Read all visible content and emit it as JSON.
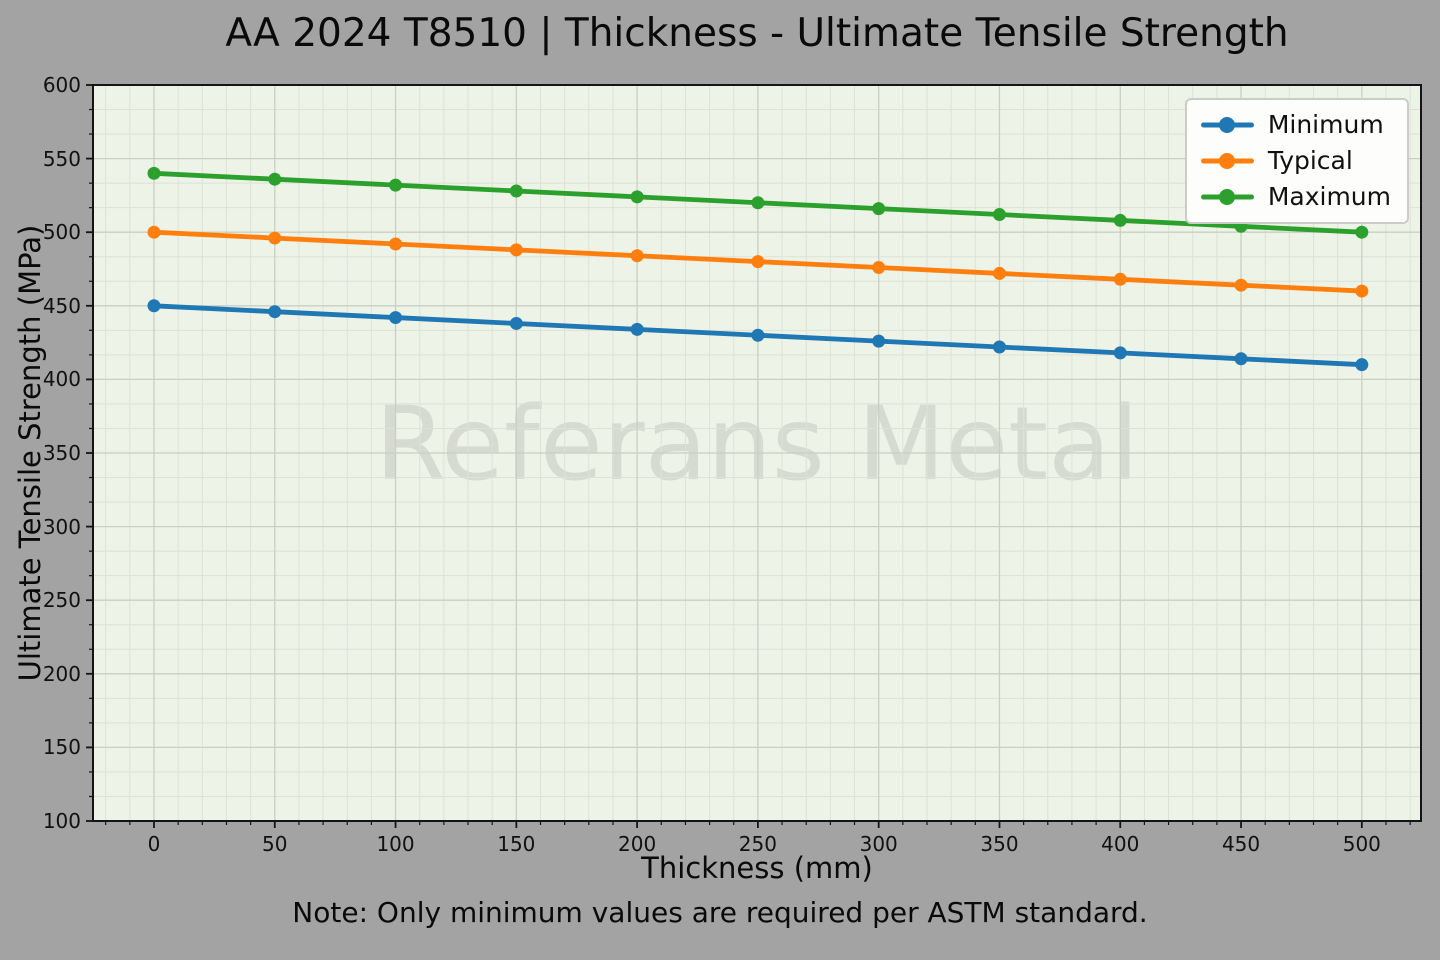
{
  "figure": {
    "background_color": "#a3a3a3",
    "plot_background_color": "#eef3e8",
    "major_grid_color": "#c9cfc3",
    "minor_grid_color": "#dce2d5",
    "spine_color": "#141414"
  },
  "chart_data": {
    "type": "line",
    "title": "AA 2024 T8510 | Thickness - Ultimate Tensile Strength",
    "xlabel": "Thickness (mm)",
    "ylabel": "Ultimate Tensile Strength (MPa)",
    "watermark": "Referans Metal",
    "note": "Note: Only minimum values are required per ASTM standard.",
    "x": [
      0,
      50,
      100,
      150,
      200,
      250,
      300,
      350,
      400,
      450,
      500
    ],
    "series": [
      {
        "name": "Minimum",
        "color": "#1f77b4",
        "values": [
          450,
          446,
          442,
          438,
          434,
          430,
          426,
          422,
          418,
          414,
          410
        ]
      },
      {
        "name": "Typical",
        "color": "#ff7f0e",
        "values": [
          500,
          496,
          492,
          488,
          484,
          480,
          476,
          472,
          468,
          464,
          460
        ]
      },
      {
        "name": "Maximum",
        "color": "#2ca02c",
        "values": [
          540,
          536,
          532,
          528,
          524,
          520,
          516,
          512,
          508,
          504,
          500
        ]
      }
    ],
    "xticks": [
      0,
      50,
      100,
      150,
      200,
      250,
      300,
      350,
      400,
      450,
      500
    ],
    "yticks": [
      100,
      150,
      200,
      250,
      300,
      350,
      400,
      450,
      500,
      550,
      600
    ],
    "xlim": [
      -25.25,
      524.5
    ],
    "ylim": [
      100,
      600
    ],
    "x_minor_step": 10,
    "y_minor_divisions": 3,
    "grid": true,
    "legend_position": "upper right"
  }
}
